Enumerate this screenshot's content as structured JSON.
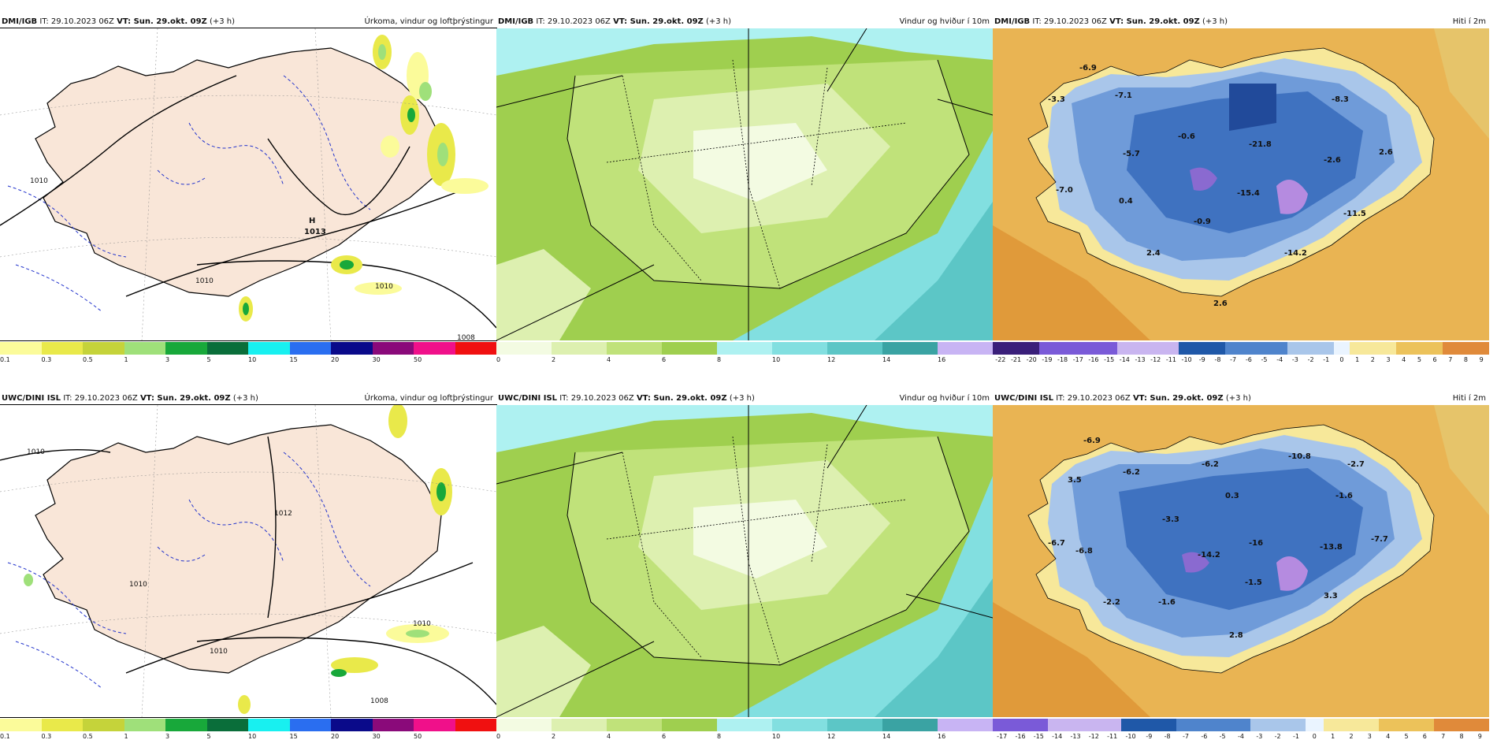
{
  "rows": [
    {
      "model": "DMI/IGB",
      "it": "IT: 29.10.2023 06Z",
      "vt": "VT: Sun. 29.okt. 09Z",
      "lead": "(+3 h)"
    },
    {
      "model": "UWC/DINI ISL",
      "it": "IT: 29.10.2023 06Z",
      "vt": "VT: Sun. 29.okt. 09Z",
      "lead": "(+3 h)"
    }
  ],
  "titles": {
    "precip": "Úrkoma, vindur og loftþrýstingur",
    "wind": "Vindur og hviður í 10m",
    "temp": "Hiti í 2m"
  },
  "precip_scale": {
    "labels": [
      "0.1",
      "0.3",
      "0.5",
      "1",
      "3",
      "5",
      "10",
      "15",
      "20",
      "30",
      "50"
    ],
    "colors": [
      "#fbfb9a",
      "#e9e94a",
      "#c5d33a",
      "#9fe07a",
      "#18a83a",
      "#0a6e3a",
      "#18f0f0",
      "#2a6ef0",
      "#0a0a8a",
      "#8a0a7a",
      "#f0108a",
      "#f01010"
    ]
  },
  "wind_scale": {
    "labels": [
      "0",
      "2",
      "4",
      "6",
      "8",
      "10",
      "12",
      "14",
      "16"
    ],
    "colors": [
      "#f3fbe2",
      "#ddf0b0",
      "#c0e27a",
      "#9fcf4f",
      "#aef1f1",
      "#82dfe0",
      "#5cc6c6",
      "#3aa3a3",
      "#c8b4f4"
    ]
  },
  "temp_scale_top": {
    "labels": [
      "-22",
      "-21",
      "-20",
      "-19",
      "-18",
      "-17",
      "-16",
      "-15",
      "-14",
      "-13",
      "-12",
      "-11",
      "-10",
      "-9",
      "-8",
      "-7",
      "-6",
      "-5",
      "-4",
      "-3",
      "-2",
      "-1",
      "0",
      "1",
      "2",
      "3",
      "4",
      "5",
      "6",
      "7",
      "8",
      "9"
    ]
  },
  "temp_scale_bottom": {
    "labels": [
      "-17",
      "-16",
      "-15",
      "-14",
      "-13",
      "-12",
      "-11",
      "-10",
      "-9",
      "-8",
      "-7",
      "-6",
      "-5",
      "-4",
      "-3",
      "-2",
      "-1",
      "0",
      "1",
      "2",
      "3",
      "4",
      "5",
      "6",
      "7",
      "8",
      "9"
    ]
  },
  "pressure_labels_top": [
    "1010",
    "1010",
    "1010",
    "1013",
    "1008"
  ],
  "high_label": "H",
  "high_value": "1013",
  "pressure_labels_bottom": [
    "1010",
    "1012",
    "1010",
    "1010",
    "1010",
    "1008"
  ],
  "temp_values_top": [
    "-6.9",
    "-3.3",
    "-7.1",
    "-8.3",
    "-0.6",
    "-21.8",
    "-5.7",
    "-7.0",
    "0.4",
    "-15.4",
    "-0.9",
    "-11.5",
    "2.4",
    "-14.2",
    "2.6",
    "-2.6",
    "2.6"
  ],
  "temp_values_bottom": [
    "-6.9",
    "3.5",
    "-6.2",
    "-6.2",
    "-10.8",
    "-2.7",
    "0.3",
    "-1.6",
    "-3.3",
    "-6.7",
    "-6.8",
    "-14.2",
    "-16",
    "-13.8",
    "-7.7",
    "-1.5",
    "-2.2",
    "-1.6",
    "3.3",
    "2.8"
  ]
}
